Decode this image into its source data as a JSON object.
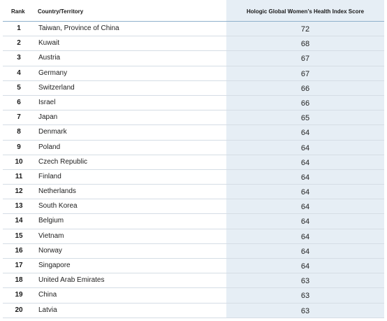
{
  "headers": {
    "rank": "Rank",
    "country": "Country/Territory",
    "score": "Hologic Global Women’s Health Index Score"
  },
  "rows": [
    {
      "rank": "1",
      "country": "Taiwan, Province of China",
      "score": "72"
    },
    {
      "rank": "2",
      "country": "Kuwait",
      "score": "68"
    },
    {
      "rank": "3",
      "country": "Austria",
      "score": "67"
    },
    {
      "rank": "4",
      "country": "Germany",
      "score": "67"
    },
    {
      "rank": "5",
      "country": "Switzerland",
      "score": "66"
    },
    {
      "rank": "6",
      "country": "Israel",
      "score": "66"
    },
    {
      "rank": "7",
      "country": "Japan",
      "score": "65"
    },
    {
      "rank": "8",
      "country": "Denmark",
      "score": "64"
    },
    {
      "rank": "9",
      "country": "Poland",
      "score": "64"
    },
    {
      "rank": "10",
      "country": "Czech Republic",
      "score": "64"
    },
    {
      "rank": "11",
      "country": "Finland",
      "score": "64"
    },
    {
      "rank": "12",
      "country": "Netherlands",
      "score": "64"
    },
    {
      "rank": "13",
      "country": "South Korea",
      "score": "64"
    },
    {
      "rank": "14",
      "country": "Belgium",
      "score": "64"
    },
    {
      "rank": "15",
      "country": "Vietnam",
      "score": "64"
    },
    {
      "rank": "16",
      "country": "Norway",
      "score": "64"
    },
    {
      "rank": "17",
      "country": "Singapore",
      "score": "64"
    },
    {
      "rank": "18",
      "country": "United Arab Emirates",
      "score": "63"
    },
    {
      "rank": "19",
      "country": "China",
      "score": "63"
    },
    {
      "rank": "20",
      "country": "Latvia",
      "score": "63"
    }
  ],
  "colors": {
    "score_column_background": "#e6eef5",
    "header_rule": "#8fb1cc",
    "row_rule": "#d5dde5"
  }
}
